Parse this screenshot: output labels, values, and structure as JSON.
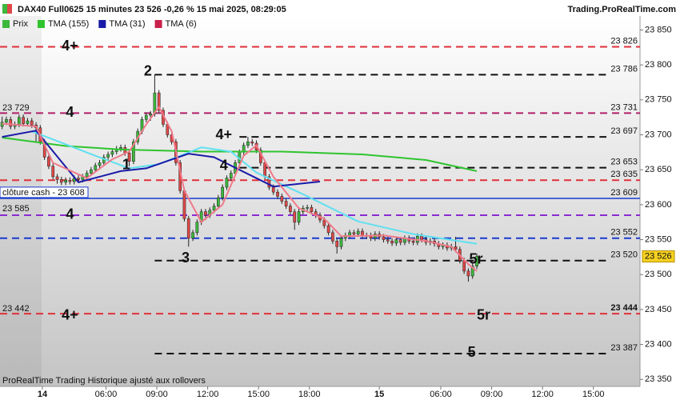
{
  "chart_data": {
    "type": "candlestick",
    "title": "DAX40 Full0625 15 minutes 23 526 -0,26 % 15 mai 2025, 08:29:05",
    "source": "Trading.ProRealTime.com",
    "footer": "ProRealTime Trading  Historique ajusté aux rollovers",
    "ylim": [
      23340,
      23870
    ],
    "yticks": [
      {
        "value": 23850,
        "label": "23 850"
      },
      {
        "value": 23800,
        "label": "23 800"
      },
      {
        "value": 23750,
        "label": "23 750"
      },
      {
        "value": 23700,
        "label": "23 700"
      },
      {
        "value": 23650,
        "label": "23 650"
      },
      {
        "value": 23600,
        "label": "23 600"
      },
      {
        "value": 23550,
        "label": "23 550"
      },
      {
        "value": 23500,
        "label": "23 500"
      },
      {
        "value": 23450,
        "label": "23 450"
      },
      {
        "value": 23400,
        "label": "23 400"
      },
      {
        "value": 23350,
        "label": "23 350"
      }
    ],
    "xlim": [
      -0.5,
      150.5
    ],
    "xticks": [
      {
        "value": 9.5,
        "label": "14"
      },
      {
        "value": 24.5,
        "label": "06:00"
      },
      {
        "value": 36.5,
        "label": "09:00"
      },
      {
        "value": 48.5,
        "label": "12:00"
      },
      {
        "value": 60.5,
        "label": "15:00"
      },
      {
        "value": 72.5,
        "label": "18:00"
      },
      {
        "value": 89,
        "label": "15"
      },
      {
        "value": 103.5,
        "label": "06:00"
      },
      {
        "value": 115.5,
        "label": "09:00"
      },
      {
        "value": 127.5,
        "label": "12:00"
      },
      {
        "value": 139.5,
        "label": "15:00"
      }
    ],
    "last": {
      "value": 23526,
      "label": "23 526"
    },
    "candles": {
      "name": "Prix",
      "up_color": "#3cb83c",
      "down_color": "#e04848",
      "ohlc": [
        [
          23712,
          23726,
          23708,
          23718
        ],
        [
          23718,
          23726,
          23714,
          23722
        ],
        [
          23722,
          23726,
          23708,
          23712
        ],
        [
          23712,
          23719,
          23708,
          23715
        ],
        [
          23715,
          23729,
          23711,
          23725
        ],
        [
          23725,
          23729,
          23712,
          23716
        ],
        [
          23716,
          23724,
          23712,
          23720
        ],
        [
          23720,
          23724,
          23710,
          23714
        ],
        [
          23714,
          23718,
          23690,
          23710
        ],
        [
          23710,
          23714,
          23686,
          23690
        ],
        [
          23690,
          23694,
          23664,
          23668
        ],
        [
          23668,
          23672,
          23651,
          23655
        ],
        [
          23655,
          23659,
          23636,
          23640
        ],
        [
          23640,
          23644,
          23630,
          23636
        ],
        [
          23636,
          23640,
          23628,
          23632
        ],
        [
          23632,
          23639,
          23628,
          23635
        ],
        [
          23635,
          23639,
          23629,
          23633
        ],
        [
          23633,
          23642,
          23629,
          23638
        ],
        [
          23638,
          23642,
          23632,
          23636
        ],
        [
          23636,
          23644,
          23632,
          23640
        ],
        [
          23640,
          23649,
          23636,
          23645
        ],
        [
          23645,
          23654,
          23641,
          23650
        ],
        [
          23650,
          23660,
          23646,
          23656
        ],
        [
          23656,
          23664,
          23652,
          23660
        ],
        [
          23660,
          23672,
          23656,
          23668
        ],
        [
          23668,
          23676,
          23664,
          23672
        ],
        [
          23672,
          23680,
          23668,
          23676
        ],
        [
          23676,
          23684,
          23672,
          23680
        ],
        [
          23680,
          23686,
          23676,
          23682
        ],
        [
          23682,
          23686,
          23670,
          23674
        ],
        [
          23674,
          23678,
          23655,
          23662
        ],
        [
          23662,
          23694,
          23658,
          23690
        ],
        [
          23690,
          23709,
          23686,
          23705
        ],
        [
          23705,
          23726,
          23701,
          23722
        ],
        [
          23722,
          23732,
          23718,
          23728
        ],
        [
          23728,
          23734,
          23720,
          23730
        ],
        [
          23730,
          23786,
          23726,
          23760
        ],
        [
          23760,
          23764,
          23731,
          23735
        ],
        [
          23735,
          23739,
          23711,
          23715
        ],
        [
          23715,
          23719,
          23696,
          23700
        ],
        [
          23700,
          23704,
          23686,
          23690
        ],
        [
          23690,
          23694,
          23656,
          23660
        ],
        [
          23660,
          23664,
          23616,
          23620
        ],
        [
          23620,
          23624,
          23576,
          23580
        ],
        [
          23580,
          23584,
          23540,
          23552
        ],
        [
          23552,
          23564,
          23548,
          23560
        ],
        [
          23560,
          23579,
          23556,
          23575
        ],
        [
          23575,
          23594,
          23571,
          23590
        ],
        [
          23590,
          23594,
          23578,
          23585
        ],
        [
          23585,
          23596,
          23581,
          23592
        ],
        [
          23592,
          23602,
          23588,
          23598
        ],
        [
          23598,
          23614,
          23594,
          23610
        ],
        [
          23610,
          23629,
          23606,
          23625
        ],
        [
          23625,
          23642,
          23621,
          23638
        ],
        [
          23638,
          23649,
          23634,
          23645
        ],
        [
          23645,
          23664,
          23641,
          23660
        ],
        [
          23660,
          23679,
          23656,
          23675
        ],
        [
          23675,
          23689,
          23671,
          23685
        ],
        [
          23685,
          23697,
          23681,
          23690
        ],
        [
          23690,
          23694,
          23684,
          23688
        ],
        [
          23688,
          23692,
          23674,
          23678
        ],
        [
          23678,
          23682,
          23656,
          23660
        ],
        [
          23660,
          23664,
          23636,
          23640
        ],
        [
          23640,
          23644,
          23621,
          23625
        ],
        [
          23625,
          23629,
          23614,
          23618
        ],
        [
          23618,
          23622,
          23608,
          23612
        ],
        [
          23612,
          23616,
          23601,
          23605
        ],
        [
          23605,
          23609,
          23594,
          23598
        ],
        [
          23598,
          23602,
          23586,
          23590
        ],
        [
          23590,
          23594,
          23564,
          23575
        ],
        [
          23575,
          23594,
          23571,
          23590
        ],
        [
          23590,
          23599,
          23586,
          23595
        ],
        [
          23595,
          23600,
          23591,
          23596
        ],
        [
          23596,
          23600,
          23586,
          23590
        ],
        [
          23590,
          23594,
          23581,
          23585
        ],
        [
          23585,
          23589,
          23574,
          23578
        ],
        [
          23578,
          23582,
          23566,
          23570
        ],
        [
          23570,
          23574,
          23556,
          23560
        ],
        [
          23560,
          23564,
          23544,
          23548
        ],
        [
          23548,
          23552,
          23530,
          23540
        ],
        [
          23540,
          23556,
          23536,
          23552
        ],
        [
          23552,
          23560,
          23548,
          23556
        ],
        [
          23556,
          23564,
          23552,
          23560
        ],
        [
          23560,
          23564,
          23554,
          23558
        ],
        [
          23558,
          23566,
          23554,
          23562
        ],
        [
          23562,
          23566,
          23551,
          23555
        ],
        [
          23555,
          23560,
          23551,
          23556
        ],
        [
          23556,
          23560,
          23548,
          23552
        ],
        [
          23552,
          23562,
          23548,
          23558
        ],
        [
          23558,
          23562,
          23550,
          23554
        ],
        [
          23554,
          23558,
          23546,
          23550
        ],
        [
          23550,
          23554,
          23544,
          23548
        ],
        [
          23548,
          23552,
          23541,
          23545
        ],
        [
          23545,
          23554,
          23541,
          23550
        ],
        [
          23550,
          23554,
          23542,
          23546
        ],
        [
          23546,
          23556,
          23542,
          23552
        ],
        [
          23552,
          23556,
          23544,
          23548
        ],
        [
          23548,
          23552,
          23542,
          23546
        ],
        [
          23546,
          23559,
          23542,
          23555
        ],
        [
          23555,
          23559,
          23546,
          23550
        ],
        [
          23550,
          23554,
          23542,
          23546
        ],
        [
          23546,
          23552,
          23542,
          23548
        ],
        [
          23548,
          23552,
          23540,
          23544
        ],
        [
          23544,
          23548,
          23536,
          23540
        ],
        [
          23540,
          23546,
          23536,
          23542
        ],
        [
          23542,
          23546,
          23534,
          23538
        ],
        [
          23538,
          23544,
          23534,
          23540
        ],
        [
          23540,
          23554,
          23532,
          23536
        ],
        [
          23536,
          23540,
          23516,
          23520
        ],
        [
          23520,
          23524,
          23501,
          23505
        ],
        [
          23505,
          23509,
          23490,
          23498
        ],
        [
          23498,
          23516,
          23494,
          23512
        ],
        [
          23512,
          23530,
          23508,
          23526
        ]
      ]
    },
    "series": [
      {
        "name": "TMA (155)",
        "color": "#2ec42e",
        "x": [
          0,
          15,
          28,
          47,
          66,
          85,
          100,
          112
        ],
        "values": [
          23696,
          23684,
          23679,
          23676,
          23676,
          23672,
          23664,
          23648
        ]
      },
      {
        "color": "#5fe0f0",
        "x": [
          7,
          22,
          30,
          37,
          47,
          54,
          60,
          71,
          84,
          97,
          112
        ],
        "values": [
          23705,
          23670,
          23652,
          23658,
          23682,
          23676,
          23646,
          23615,
          23576,
          23558,
          23544
        ]
      },
      {
        "name": "TMA (31)",
        "color": "#1a1aa8",
        "x": [
          0,
          8,
          18,
          28,
          34,
          44,
          50,
          64,
          75
        ],
        "values": [
          23697,
          23706,
          23632,
          23648,
          23652,
          23673,
          23668,
          23626,
          23633
        ]
      },
      {
        "name": "TMA (6)",
        "color": "#f07a8a",
        "x": [
          0,
          8,
          12,
          20,
          26,
          30,
          34,
          37,
          40,
          43,
          47,
          52,
          57,
          60,
          64,
          70,
          76,
          80,
          90,
          100,
          106,
          110,
          112
        ],
        "values": [
          23716,
          23712,
          23660,
          23638,
          23665,
          23676,
          23715,
          23740,
          23705,
          23620,
          23575,
          23600,
          23670,
          23685,
          23640,
          23595,
          23580,
          23555,
          23556,
          23548,
          23540,
          23515,
          23505
        ]
      }
    ],
    "legend_colors": [
      "#3cb83c",
      "#2ec42e",
      "#1a1aa8",
      "#c8204a"
    ],
    "levels": [
      {
        "value": 23826,
        "label": "23 826",
        "color": "#e0303a",
        "label_color": "#e0303a",
        "dash": true
      },
      {
        "value": 23786,
        "label": "23 786",
        "color": "#111111",
        "label_color": "#111111",
        "dash": true,
        "x_start": 36
      },
      {
        "value": 23731,
        "label": "23 731",
        "color": "#b0206a",
        "label_color": "#e0303a",
        "dash": true
      },
      {
        "value": 23697,
        "label": "23 697",
        "color": "#111111",
        "label_color": "#111111",
        "dash": true,
        "x_start": 56
      },
      {
        "value": 23653,
        "label": "23 653",
        "color": "#111111",
        "label_color": "#111111",
        "dash": true,
        "x_start": 56
      },
      {
        "value": 23635,
        "label": "23 635",
        "color": "#e0303a",
        "label_color": "#e0303a",
        "dash": true
      },
      {
        "value": 23609,
        "label": "23 609",
        "color": "#1a3ad0",
        "label_color": "#111111",
        "dash": false
      },
      {
        "value": 23585,
        "color": "#8a2ad0",
        "dash": true
      },
      {
        "value": 23552,
        "label": "23 552",
        "color": "#1a3ad0",
        "label_color": "#1a3ad0",
        "dash": true
      },
      {
        "value": 23520,
        "label": "23 520",
        "color": "#111111",
        "label_color": "#111111",
        "dash": true,
        "x_start": 36
      },
      {
        "value": 23444,
        "label": "23 444",
        "color": "#e0303a",
        "label_color": "#e0303a",
        "dash": true
      },
      {
        "value": 23387,
        "label": "23 387",
        "color": "#111111",
        "label_color": "#111111",
        "dash": true,
        "x_start": 36
      }
    ],
    "left_labels": [
      {
        "text": "23 729",
        "value": 23729,
        "color": "#8a2ad0"
      },
      {
        "text": "clôture cash -  23 608",
        "value": 23608,
        "color": "#1a3ad0",
        "boxed": true
      },
      {
        "text": "23 585",
        "value": 23585,
        "color": "#8a2ad0"
      },
      {
        "text": "23 442",
        "value": 23442,
        "color": "#8a2ad0"
      }
    ],
    "waves": [
      {
        "text": "4+",
        "x": 16,
        "y": 23826,
        "color": "#e0303a"
      },
      {
        "text": "2",
        "x": 34.4,
        "y": 23790,
        "color": "#111111"
      },
      {
        "text": "4",
        "x": 16,
        "y": 23731,
        "color": "#b0206a"
      },
      {
        "text": "4+",
        "x": 52.3,
        "y": 23699,
        "color": "#111111"
      },
      {
        "text": "1",
        "x": 29.3,
        "y": 23656,
        "color": "#111111"
      },
      {
        "text": "4",
        "x": 52.3,
        "y": 23655,
        "color": "#111111"
      },
      {
        "text": "4",
        "x": 16,
        "y": 23585,
        "color": "#8a2ad0"
      },
      {
        "text": "3",
        "x": 43.3,
        "y": 23523,
        "color": "#111111"
      },
      {
        "text": "5r",
        "x": 111.8,
        "y": 23521,
        "color": "#111111"
      },
      {
        "text": "4+",
        "x": 16,
        "y": 23441,
        "color": "#8a2ad0"
      },
      {
        "text": "5r",
        "x": 113.6,
        "y": 23441,
        "color": "#e0303a"
      },
      {
        "text": "5",
        "x": 110.8,
        "y": 23388,
        "color": "#111111"
      }
    ]
  }
}
